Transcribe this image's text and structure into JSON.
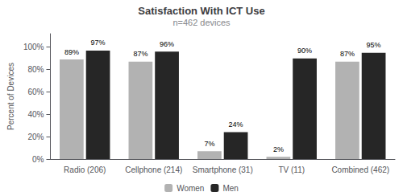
{
  "chart_data": {
    "type": "bar",
    "title": "Satisfaction With ICT Use",
    "subtitle": "n=462 devices",
    "categories": [
      "Radio (206)",
      "Cellphone (214)",
      "Smartphone (31)",
      "TV (11)",
      "Combined (462)"
    ],
    "series": [
      {
        "name": "Women",
        "color": "#b2b2b2",
        "values": [
          89,
          87,
          7,
          2,
          87
        ],
        "value_labels": [
          "89%",
          "87%",
          "7%",
          "2%",
          "87%"
        ]
      },
      {
        "name": "Men",
        "color": "#262626",
        "values": [
          97,
          96,
          24,
          90,
          95
        ],
        "value_labels": [
          "97%",
          "96%",
          "24%",
          "90%",
          "95%"
        ]
      }
    ],
    "ylabel": "Percent of Devices",
    "ylim": [
      0,
      112
    ],
    "yticks": [
      {
        "value": 0,
        "label": "0%"
      },
      {
        "value": 20,
        "label": "20%"
      },
      {
        "value": 40,
        "label": "40%"
      },
      {
        "value": 60,
        "label": "60%"
      },
      {
        "value": 80,
        "label": "80%"
      },
      {
        "value": 100,
        "label": "100%"
      }
    ],
    "grid": false,
    "legend": "bottom",
    "data_labels": true
  }
}
